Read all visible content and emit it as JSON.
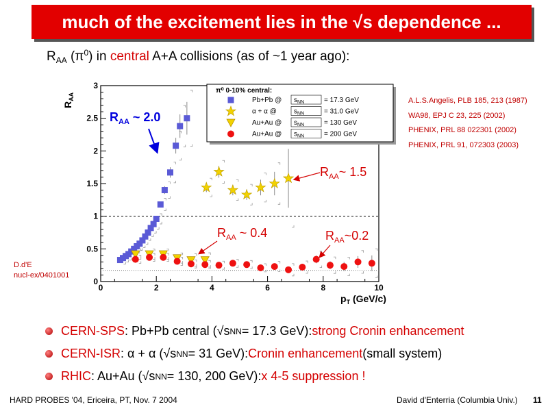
{
  "slide": {
    "title": "much of the excitement lies in the √s dependence ...",
    "subtitle": {
      "r": "R",
      "r_sub": "AA",
      "open": " (π",
      "pi_sup": "0",
      "close": ") in ",
      "central": "central",
      "rest": " A+A collisions (as of ~1 year ago):"
    },
    "references": [
      "A.L.S.Angelis, PLB 185, 213 (1987)",
      "WA98, EPJ C 23, 225 (2002)",
      "PHENIX, PRL 88 022301 (2002)",
      "PHENIX, PRL 91, 072303  (2003)"
    ],
    "credit": [
      "D.d'E",
      "nucl-ex/0401001"
    ],
    "bullets": [
      {
        "a": "CERN-SPS",
        "b": ": Pb+Pb central (√s",
        "c": "NN",
        "d": " = 17.3 GeV): ",
        "e": "strong Cronin enhancement",
        "f": ""
      },
      {
        "a": "CERN-ISR",
        "b": ": α + α  (√s",
        "c": "NN",
        "d": "= 31 GeV): ",
        "e": "Cronin enhancement",
        "f": " (small system)"
      },
      {
        "a": "RHIC",
        "b": ": Au+Au (√s",
        "c": "NN",
        "d": " = 130, 200 GeV): ",
        "e": "x 4-5 suppression !",
        "f": ""
      }
    ],
    "footer_left": "HARD PROBES '04, Ericeira, PT, Nov. 7 2004",
    "footer_right": "David d'Enterria (Columbia Univ.)",
    "page_number": "11"
  },
  "chart_data": {
    "type": "scatter",
    "ylabel": "R",
    "ylabel_sub": "AA",
    "xlabel": "p",
    "xlabel_sub": "T",
    "xlabel_unit": " (GeV/c)",
    "xlim": [
      0,
      10
    ],
    "ylim": [
      0,
      3
    ],
    "x_ticks": [
      0,
      2,
      4,
      6,
      8,
      10
    ],
    "y_ticks": [
      0,
      0.5,
      1,
      1.5,
      2,
      2.5,
      3
    ],
    "reference_line": 1,
    "legend": {
      "header": "π⁰ 0-10% central:",
      "position": "top-center"
    },
    "series": [
      {
        "name": "Pb+Pb @ √s_NN = 17.3 GeV",
        "label_text": "Pb+Pb @",
        "energy": "= 17.3 GeV",
        "marker": "square",
        "color": "#5a5ad6",
        "points": [
          [
            0.7,
            0.33
          ],
          [
            0.8,
            0.36
          ],
          [
            0.9,
            0.39
          ],
          [
            1.0,
            0.42
          ],
          [
            1.1,
            0.46
          ],
          [
            1.2,
            0.5
          ],
          [
            1.3,
            0.54
          ],
          [
            1.4,
            0.58
          ],
          [
            1.5,
            0.63
          ],
          [
            1.6,
            0.69
          ],
          [
            1.7,
            0.75
          ],
          [
            1.8,
            0.82
          ],
          [
            1.9,
            0.88
          ],
          [
            2.0,
            0.96
          ],
          [
            2.15,
            1.18
          ],
          [
            2.3,
            1.4
          ],
          [
            2.5,
            1.67
          ],
          [
            2.7,
            2.08
          ],
          [
            2.85,
            2.38
          ],
          [
            3.1,
            2.5
          ]
        ],
        "errors": [
          0.02,
          0.02,
          0.02,
          0.02,
          0.02,
          0.02,
          0.02,
          0.02,
          0.02,
          0.02,
          0.02,
          0.03,
          0.03,
          0.03,
          0.04,
          0.06,
          0.08,
          0.12,
          0.18,
          0.25
        ]
      },
      {
        "name": "α+α @ √s_NN = 31.0 GeV",
        "label_text": "α + α  @",
        "energy": "= 31.0 GeV",
        "marker": "star",
        "color": "#f2d200",
        "points": [
          [
            3.8,
            1.44
          ],
          [
            4.25,
            1.68
          ],
          [
            4.75,
            1.4
          ],
          [
            5.25,
            1.33
          ],
          [
            5.75,
            1.44
          ],
          [
            6.25,
            1.5
          ],
          [
            6.75,
            1.58
          ]
        ],
        "errors": [
          0.07,
          0.09,
          0.08,
          0.08,
          0.12,
          0.18,
          0.45
        ]
      },
      {
        "name": "Au+Au @ √s_NN = 130 GeV",
        "label_text": "Au+Au @",
        "energy": "= 130 GeV",
        "marker": "triangle",
        "color": "#f2d200",
        "points": [
          [
            1.25,
            0.42
          ],
          [
            1.75,
            0.42
          ],
          [
            2.25,
            0.42
          ],
          [
            2.75,
            0.36
          ],
          [
            3.25,
            0.33
          ],
          [
            3.75,
            0.33
          ]
        ],
        "errors": [
          0.03,
          0.03,
          0.03,
          0.03,
          0.04,
          0.05
        ]
      },
      {
        "name": "Au+Au @ √s_NN = 200 GeV",
        "label_text": "Au+Au @",
        "energy": "= 200 GeV",
        "marker": "circle",
        "color": "#ee1111",
        "points": [
          [
            1.25,
            0.34
          ],
          [
            1.75,
            0.37
          ],
          [
            2.25,
            0.37
          ],
          [
            2.75,
            0.31
          ],
          [
            3.25,
            0.27
          ],
          [
            3.75,
            0.26
          ],
          [
            4.25,
            0.25
          ],
          [
            4.75,
            0.28
          ],
          [
            5.25,
            0.26
          ],
          [
            5.75,
            0.21
          ],
          [
            6.25,
            0.23
          ],
          [
            6.75,
            0.18
          ],
          [
            7.25,
            0.22
          ],
          [
            7.75,
            0.34
          ],
          [
            8.25,
            0.25
          ],
          [
            8.75,
            0.23
          ],
          [
            9.25,
            0.3
          ],
          [
            9.75,
            0.28
          ]
        ],
        "errors": [
          0.02,
          0.02,
          0.02,
          0.02,
          0.02,
          0.02,
          0.02,
          0.02,
          0.02,
          0.02,
          0.03,
          0.04,
          0.04,
          0.06,
          0.06,
          0.07,
          0.09,
          0.12
        ]
      }
    ],
    "annotations": [
      {
        "text": "R",
        "sub": "AA",
        "rest": " ~  2.0",
        "color": "#0000dd"
      },
      {
        "text": "R",
        "sub": "AA",
        "rest": "~ 1.5",
        "color": "#d40000"
      },
      {
        "text": "R",
        "sub": "AA",
        "rest": " ~  0.4",
        "color": "#d40000"
      },
      {
        "text": "R",
        "sub": "AA",
        "rest": "~0.2",
        "color": "#d40000"
      }
    ]
  }
}
